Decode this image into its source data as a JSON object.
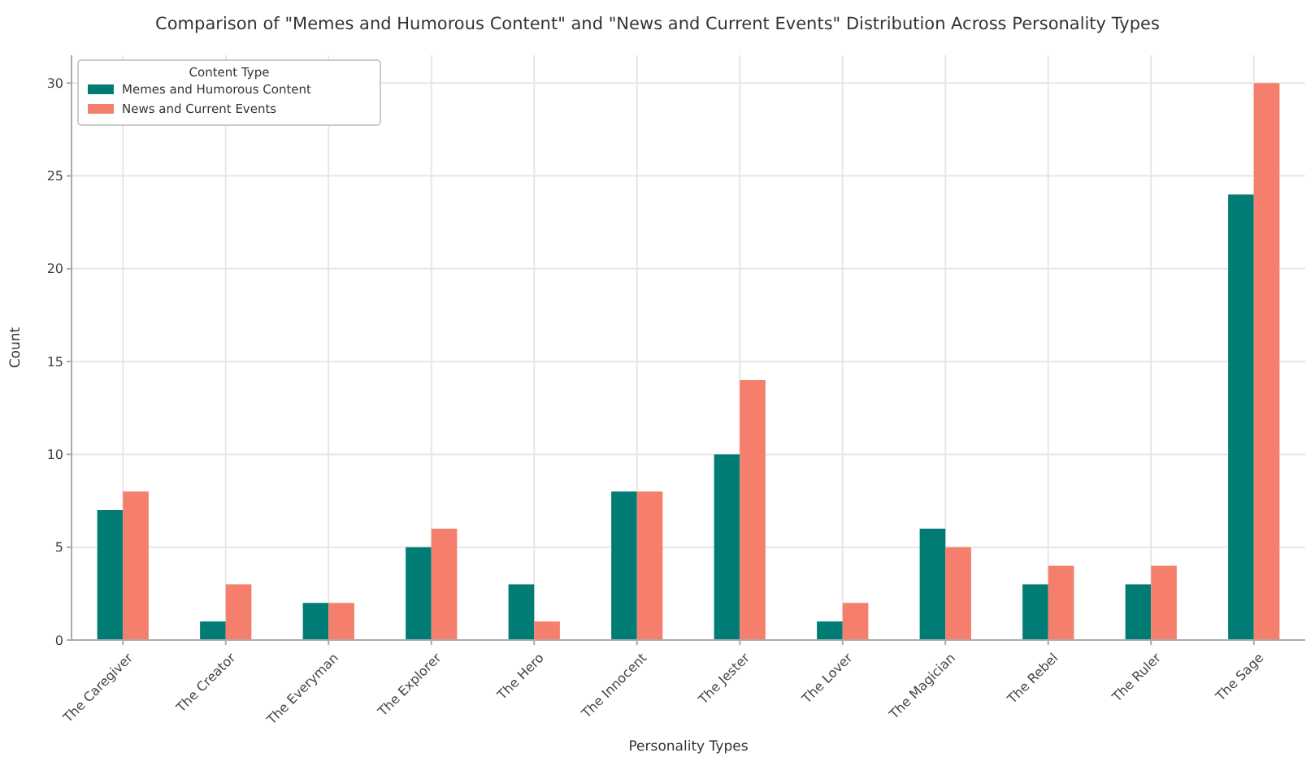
{
  "chart_data": {
    "type": "bar",
    "title": "Comparison of \"Memes and Humorous Content\" and \"News and Current Events\" Distribution Across Personality Types",
    "xlabel": "Personality Types",
    "ylabel": "Count",
    "legend_title": "Content Type",
    "categories": [
      "The Caregiver",
      "The Creator",
      "The Everyman",
      "The Explorer",
      "The Hero",
      "The Innocent",
      "The Jester",
      "The Lover",
      "The Magician",
      "The Rebel",
      "The Ruler",
      "The Sage"
    ],
    "series": [
      {
        "name": "Memes and Humorous Content",
        "color": "#007c74",
        "values": [
          7,
          1,
          2,
          5,
          3,
          8,
          10,
          1,
          6,
          3,
          3,
          24
        ]
      },
      {
        "name": "News and Current Events",
        "color": "#f57f6c",
        "values": [
          8,
          3,
          2,
          6,
          1,
          8,
          14,
          2,
          5,
          4,
          4,
          30
        ]
      }
    ],
    "ylim": [
      0,
      31.5
    ],
    "yticks": [
      0,
      5,
      10,
      15,
      20,
      25,
      30
    ],
    "grid": true,
    "legend": "top left"
  }
}
